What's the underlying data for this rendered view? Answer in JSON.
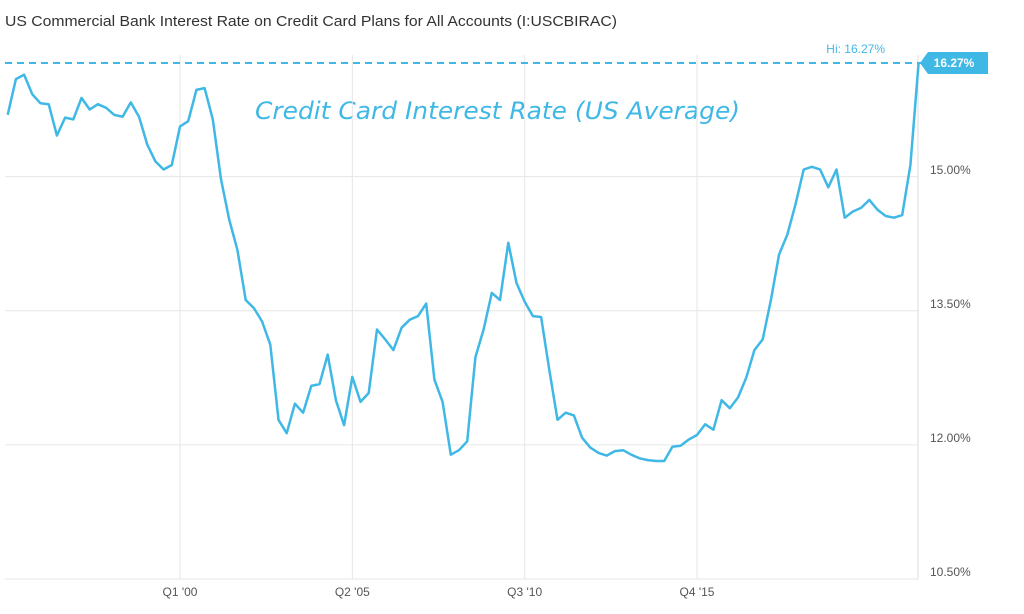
{
  "chart_data": {
    "type": "line",
    "title": "US Commercial Bank Interest Rate on Credit Card Plans for All Accounts (I:USCBIRAC)",
    "annotation": "Credit Card Interest Rate (US Average)",
    "hi_line": {
      "value": 16.27,
      "label": "Hi: 16.27%",
      "badge": "16.27%"
    },
    "color": "#3fb8e6",
    "grid": true,
    "ylim": [
      10.5,
      16.36
    ],
    "yticks": [
      {
        "value": 10.5,
        "label": "10.50%"
      },
      {
        "value": 12,
        "label": "12.00%"
      },
      {
        "value": 13.5,
        "label": "13.50%"
      },
      {
        "value": 15,
        "label": "15.00%"
      }
    ],
    "categories": [
      null,
      null,
      null,
      null,
      null,
      null,
      null,
      null,
      null,
      null,
      null,
      null,
      null,
      null,
      null,
      null,
      null,
      null,
      null,
      null,
      null,
      "Q1 '00",
      null,
      null,
      null,
      null,
      null,
      null,
      null,
      null,
      null,
      null,
      null,
      null,
      null,
      null,
      null,
      null,
      null,
      null,
      null,
      null,
      "Q2 '05",
      null,
      null,
      null,
      null,
      null,
      null,
      null,
      null,
      null,
      null,
      null,
      null,
      null,
      null,
      null,
      null,
      null,
      null,
      null,
      null,
      "Q3 '10",
      null,
      null,
      null,
      null,
      null,
      null,
      null,
      null,
      null,
      null,
      null,
      null,
      null,
      null,
      null,
      null,
      null,
      null,
      null,
      null,
      "Q4 '15",
      null,
      null,
      null,
      null,
      null,
      null,
      null,
      null,
      null,
      null,
      null,
      null,
      null,
      null,
      null,
      null,
      null,
      null,
      null,
      null,
      null,
      null,
      null,
      null,
      null,
      null,
      null
    ],
    "values": [
      15.69,
      16.09,
      16.14,
      15.92,
      15.82,
      15.81,
      15.46,
      15.66,
      15.64,
      15.88,
      15.75,
      15.81,
      15.77,
      15.69,
      15.67,
      15.83,
      15.67,
      15.36,
      15.17,
      15.08,
      15.13,
      15.56,
      15.62,
      15.97,
      15.99,
      15.64,
      14.97,
      14.52,
      14.18,
      13.62,
      13.53,
      13.38,
      13.12,
      12.28,
      12.13,
      12.46,
      12.36,
      12.66,
      12.68,
      13.01,
      12.5,
      12.22,
      12.76,
      12.48,
      12.58,
      13.29,
      13.18,
      13.06,
      13.31,
      13.4,
      13.44,
      13.58,
      12.73,
      12.48,
      11.89,
      11.94,
      12.04,
      12.98,
      13.29,
      13.7,
      13.62,
      14.26,
      13.81,
      13.6,
      13.44,
      13.43,
      12.84,
      12.28,
      12.36,
      12.33,
      12.08,
      11.97,
      11.91,
      11.88,
      11.93,
      11.94,
      11.89,
      11.85,
      11.83,
      11.82,
      11.82,
      11.98,
      11.99,
      12.06,
      12.11,
      12.23,
      12.17,
      12.5,
      12.41,
      12.53,
      12.75,
      13.06,
      13.18,
      13.62,
      14.13,
      14.35,
      14.69,
      15.08,
      15.11,
      15.08,
      14.88,
      15.08,
      14.54,
      14.61,
      14.65,
      14.74,
      14.63,
      14.56,
      14.54,
      14.57,
      15.13,
      16.27
    ]
  }
}
